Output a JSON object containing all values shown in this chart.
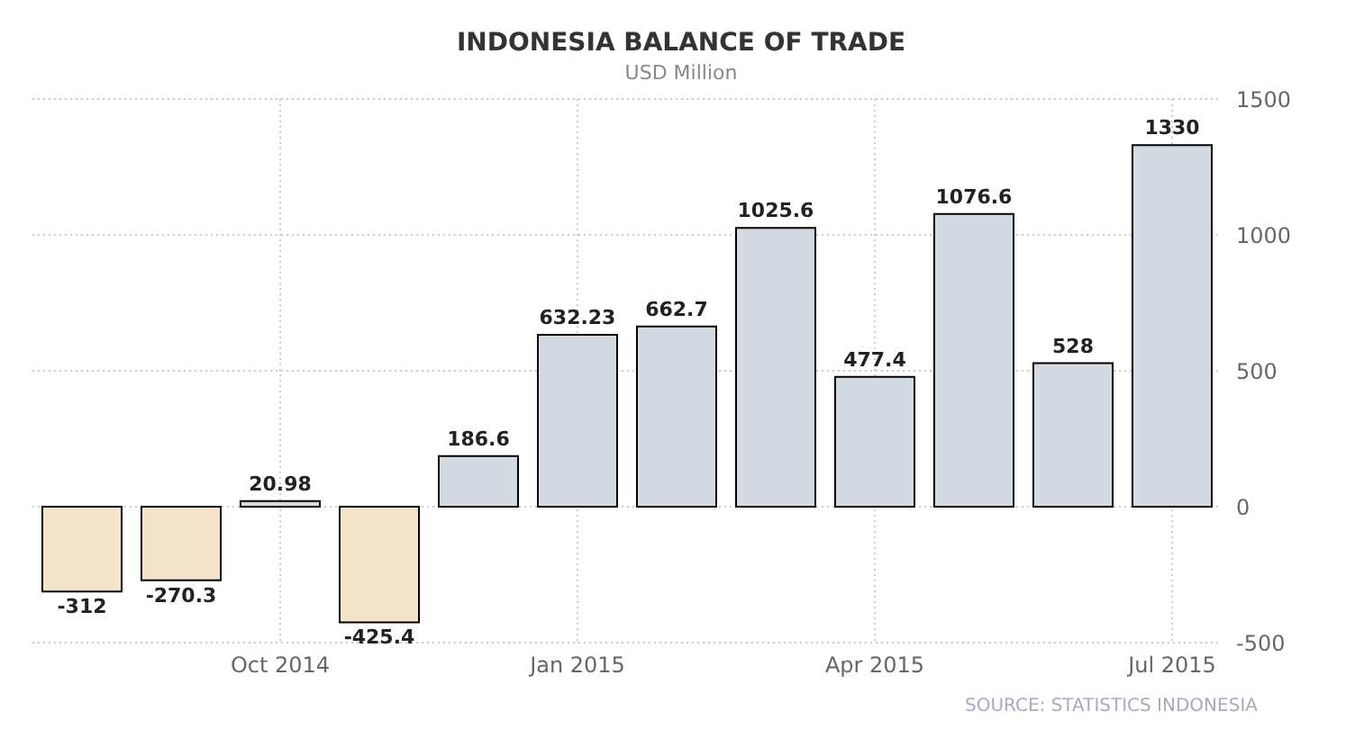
{
  "chart_data": {
    "type": "bar",
    "title": "INDONESIA BALANCE OF TRADE",
    "subtitle": "USD Million",
    "categories": [
      null,
      null,
      "Oct 2014",
      null,
      null,
      "Jan 2015",
      null,
      null,
      "Apr 2015",
      null,
      null,
      "Jul 2015"
    ],
    "values": [
      -312,
      -270.3,
      20.98,
      -425.4,
      186.6,
      632.23,
      662.7,
      1025.6,
      477.4,
      1076.6,
      528,
      1330
    ],
    "colors": [
      "#f3e4cb",
      "#f3e4cb",
      "#d3dae2",
      "#f3e4cb",
      "#d3dae2",
      "#d3dae2",
      "#d3dae2",
      "#d3dae2",
      "#d3dae2",
      "#d3dae2",
      "#d3dae2",
      "#d3dae2"
    ],
    "ylim": [
      -500,
      1500
    ],
    "yticks": [
      -500,
      0,
      500,
      1000,
      1500
    ],
    "grid": true,
    "data_labels": true,
    "annotations": [
      "SOURCE: STATISTICS INDONESIA"
    ]
  }
}
